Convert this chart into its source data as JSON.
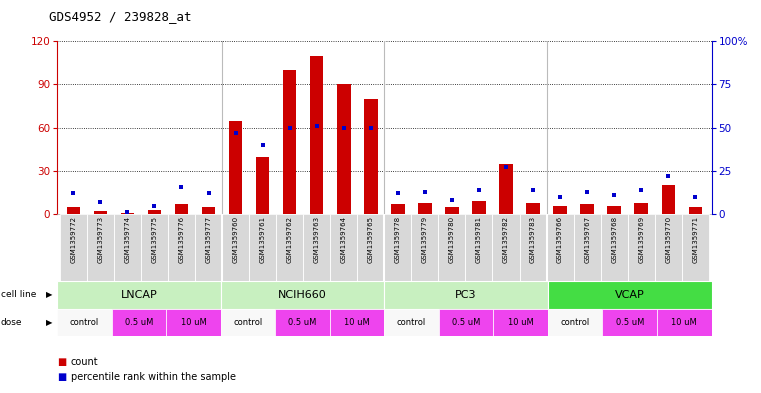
{
  "title": "GDS4952 / 239828_at",
  "samples": [
    "GSM1359772",
    "GSM1359773",
    "GSM1359774",
    "GSM1359775",
    "GSM1359776",
    "GSM1359777",
    "GSM1359760",
    "GSM1359761",
    "GSM1359762",
    "GSM1359763",
    "GSM1359764",
    "GSM1359765",
    "GSM1359778",
    "GSM1359779",
    "GSM1359780",
    "GSM1359781",
    "GSM1359782",
    "GSM1359783",
    "GSM1359766",
    "GSM1359767",
    "GSM1359768",
    "GSM1359769",
    "GSM1359770",
    "GSM1359771"
  ],
  "counts": [
    5,
    2,
    1,
    3,
    7,
    5,
    65,
    40,
    100,
    110,
    90,
    80,
    7,
    8,
    5,
    9,
    35,
    8,
    6,
    7,
    6,
    8,
    20,
    5
  ],
  "percentile_ranks": [
    12,
    7,
    1,
    5,
    16,
    12,
    47,
    40,
    50,
    51,
    50,
    50,
    12,
    13,
    8,
    14,
    27,
    14,
    10,
    13,
    11,
    14,
    22,
    10
  ],
  "cell_lines": [
    "LNCAP",
    "NCIH660",
    "PC3",
    "VCAP"
  ],
  "cell_line_spans": [
    6,
    6,
    6,
    6
  ],
  "cell_line_colors": [
    "#c8f0c0",
    "#c8f0c0",
    "#c8f0c0",
    "#44dd44"
  ],
  "bar_color": "#cc0000",
  "marker_color": "#0000cc",
  "left_yticks": [
    0,
    30,
    60,
    90,
    120
  ],
  "right_yticks": [
    0,
    25,
    50,
    75,
    100
  ],
  "ylim_left": [
    0,
    120
  ],
  "ylim_right": [
    0,
    100
  ],
  "control_color": "#f8f8f8",
  "dose_color": "#ee44ee",
  "dose_labels": [
    "control",
    "0.5 uM",
    "10 uM"
  ],
  "sample_bg_color": "#d8d8d8"
}
